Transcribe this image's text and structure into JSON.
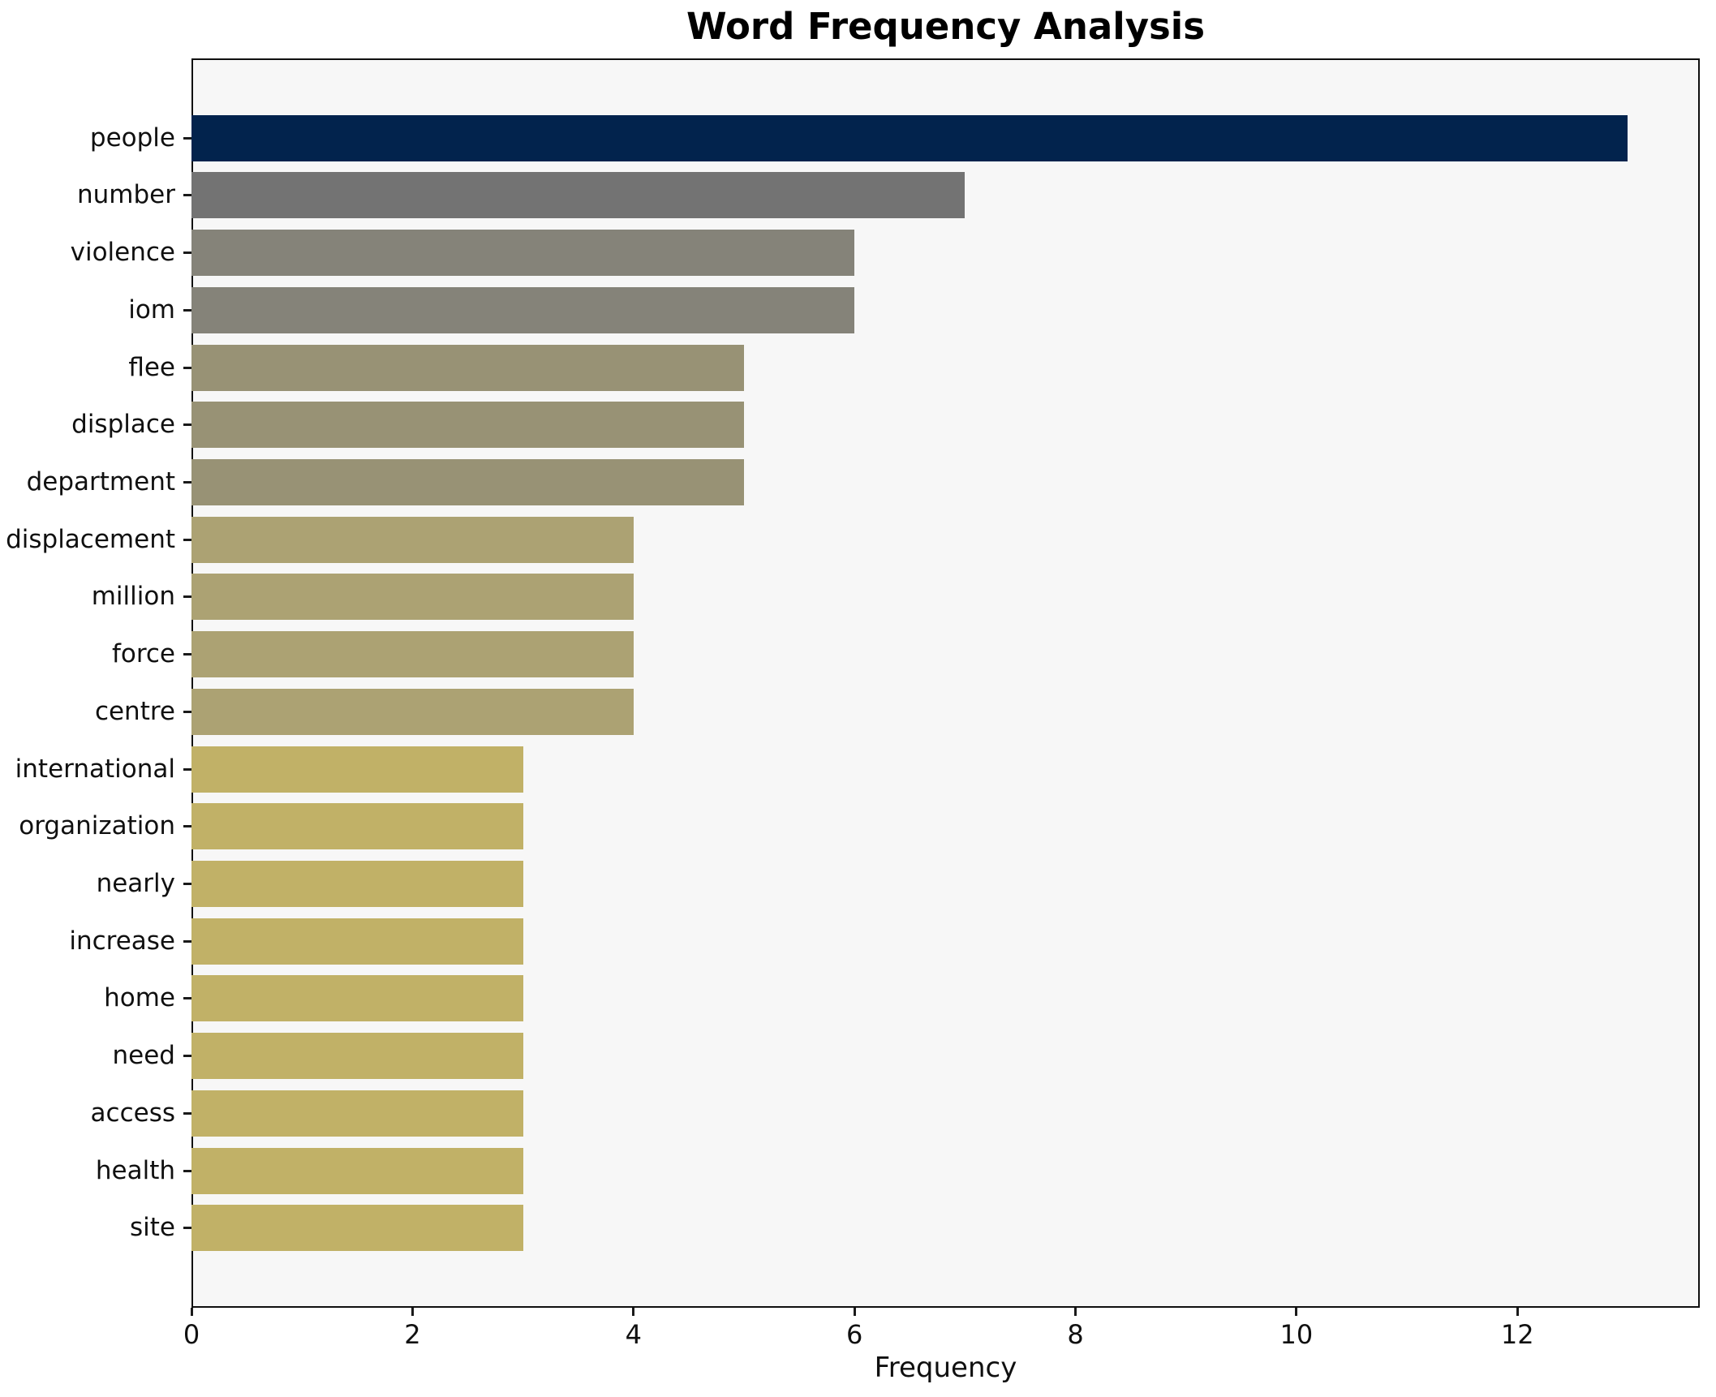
{
  "chart_data": {
    "type": "bar",
    "orientation": "horizontal",
    "title": "Word Frequency Analysis",
    "xlabel": "Frequency",
    "ylabel": "",
    "categories": [
      "people",
      "number",
      "violence",
      "iom",
      "flee",
      "displace",
      "department",
      "displacement",
      "million",
      "force",
      "centre",
      "international",
      "organization",
      "nearly",
      "increase",
      "home",
      "need",
      "access",
      "health",
      "site"
    ],
    "values": [
      13,
      7,
      6,
      6,
      5,
      5,
      5,
      4,
      4,
      4,
      4,
      3,
      3,
      3,
      3,
      3,
      3,
      3,
      3,
      3
    ],
    "bar_colors": [
      "#02234d",
      "#737373",
      "#858379",
      "#858379",
      "#989275",
      "#989275",
      "#989275",
      "#aca273",
      "#aca273",
      "#aca273",
      "#aca273",
      "#c1b167",
      "#c1b167",
      "#c1b167",
      "#c1b167",
      "#c1b167",
      "#c1b167",
      "#c1b167",
      "#c1b167",
      "#c1b167"
    ],
    "xlim": [
      0,
      13.65
    ],
    "xticks": [
      0,
      2,
      4,
      6,
      8,
      10,
      12
    ],
    "grid": false,
    "legend": null,
    "plot_background": "#f7f7f7",
    "figure_background": "#ffffff",
    "spine_color": "#0f0f0f"
  }
}
